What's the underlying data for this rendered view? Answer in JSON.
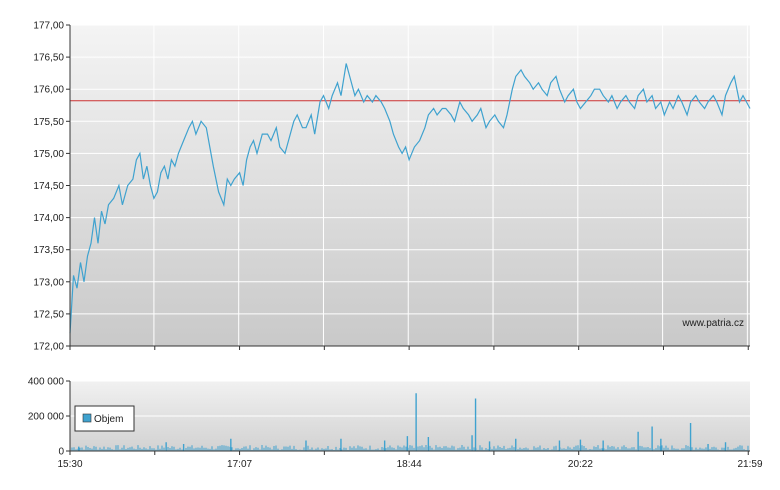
{
  "chart_data": [
    {
      "type": "line",
      "title": "",
      "xlabel": "",
      "ylabel": "",
      "ylim": [
        172.0,
        177.0
      ],
      "y_ticks": [
        "177,00",
        "176,50",
        "176,00",
        "175,50",
        "175,00",
        "174,50",
        "174,00",
        "173,50",
        "173,00",
        "172,50",
        "172,00"
      ],
      "x_ticks": [
        "15:30",
        "17:07",
        "18:44",
        "20:22",
        "21:59"
      ],
      "reference_line": 175.82,
      "watermark": "www.patria.cz",
      "grid": true,
      "series": [
        {
          "x": [
            "15:30",
            "15:32",
            "15:34",
            "15:36",
            "15:38",
            "15:40",
            "15:42",
            "15:44",
            "15:46",
            "15:48",
            "15:50",
            "15:52",
            "15:55",
            "15:58",
            "16:00",
            "16:03",
            "16:06",
            "16:08",
            "16:10",
            "16:12",
            "16:14",
            "16:16",
            "16:18",
            "16:20",
            "16:22",
            "16:24",
            "16:26",
            "16:28",
            "16:30",
            "16:32",
            "16:35",
            "16:38",
            "16:40",
            "16:42",
            "16:45",
            "16:48",
            "16:50",
            "16:52",
            "16:55",
            "16:58",
            "17:00",
            "17:02",
            "17:04",
            "17:07",
            "17:09",
            "17:11",
            "17:13",
            "17:15",
            "17:17",
            "17:20",
            "17:23",
            "17:25",
            "17:28",
            "17:30",
            "17:33",
            "17:35",
            "17:38",
            "17:40",
            "17:43",
            "17:45",
            "17:48",
            "17:50",
            "17:53",
            "17:55",
            "17:58",
            "18:00",
            "18:03",
            "18:05",
            "18:08",
            "18:10",
            "18:13",
            "18:15",
            "18:18",
            "18:20",
            "18:23",
            "18:25",
            "18:28",
            "18:30",
            "18:33",
            "18:35",
            "18:38",
            "18:40",
            "18:42",
            "18:44",
            "18:47",
            "18:50",
            "18:53",
            "18:55",
            "18:58",
            "19:00",
            "19:03",
            "19:05",
            "19:08",
            "19:10",
            "19:13",
            "19:15",
            "19:18",
            "19:20",
            "19:23",
            "19:25",
            "19:28",
            "19:30",
            "19:33",
            "19:35",
            "19:38",
            "19:40",
            "19:43",
            "19:45",
            "19:48",
            "19:50",
            "19:53",
            "19:55",
            "19:58",
            "20:00",
            "20:03",
            "20:05",
            "20:08",
            "20:10",
            "20:13",
            "20:15",
            "20:18",
            "20:20",
            "20:22",
            "20:25",
            "20:28",
            "20:30",
            "20:33",
            "20:35",
            "20:38",
            "20:40",
            "20:43",
            "20:45",
            "20:48",
            "20:50",
            "20:53",
            "20:55",
            "20:58",
            "21:00",
            "21:03",
            "21:05",
            "21:08",
            "21:10",
            "21:13",
            "21:15",
            "21:18",
            "21:20",
            "21:23",
            "21:25",
            "21:28",
            "21:30",
            "21:33",
            "21:35",
            "21:38",
            "21:40",
            "21:43",
            "21:45",
            "21:48",
            "21:50",
            "21:53",
            "21:55",
            "21:57",
            "21:59"
          ],
          "values": [
            172.2,
            173.1,
            172.9,
            173.3,
            173.0,
            173.4,
            173.6,
            174.0,
            173.6,
            174.1,
            173.9,
            174.2,
            174.3,
            174.5,
            174.2,
            174.5,
            174.6,
            174.9,
            175.0,
            174.6,
            174.8,
            174.5,
            174.3,
            174.4,
            174.7,
            174.8,
            174.6,
            174.9,
            174.8,
            175.0,
            175.2,
            175.4,
            175.5,
            175.3,
            175.5,
            175.4,
            175.1,
            174.8,
            174.4,
            174.2,
            174.6,
            174.5,
            174.6,
            174.7,
            174.5,
            174.9,
            175.1,
            175.2,
            175.0,
            175.3,
            175.3,
            175.2,
            175.4,
            175.1,
            175.0,
            175.2,
            175.5,
            175.6,
            175.4,
            175.4,
            175.6,
            175.3,
            175.8,
            175.9,
            175.7,
            175.9,
            176.1,
            175.9,
            176.4,
            176.2,
            175.9,
            176.0,
            175.8,
            175.9,
            175.8,
            175.9,
            175.8,
            175.7,
            175.5,
            175.3,
            175.1,
            175.0,
            175.1,
            174.9,
            175.1,
            175.2,
            175.4,
            175.6,
            175.7,
            175.6,
            175.7,
            175.7,
            175.6,
            175.5,
            175.8,
            175.7,
            175.6,
            175.5,
            175.6,
            175.7,
            175.4,
            175.5,
            175.6,
            175.5,
            175.4,
            175.6,
            176.0,
            176.2,
            176.3,
            176.2,
            176.1,
            176.0,
            176.1,
            176.0,
            175.9,
            176.1,
            176.2,
            176.0,
            175.8,
            175.9,
            176.0,
            175.8,
            175.7,
            175.8,
            175.9,
            176.0,
            176.0,
            175.9,
            175.8,
            175.9,
            175.7,
            175.8,
            175.9,
            175.8,
            175.7,
            175.9,
            176.0,
            175.8,
            175.9,
            175.7,
            175.8,
            175.6,
            175.8,
            175.7,
            175.9,
            175.8,
            175.6,
            175.8,
            175.9,
            175.8,
            175.7,
            175.8,
            175.9,
            175.8,
            175.6,
            175.9,
            176.1,
            176.2,
            175.8,
            175.9,
            175.8,
            175.7
          ]
        }
      ]
    },
    {
      "type": "bar",
      "title": "",
      "xlabel": "",
      "ylabel": "",
      "ylim": [
        0,
        400000
      ],
      "y_ticks": [
        "400 000",
        "200 000",
        "0"
      ],
      "x_ticks": [
        "15:30",
        "17:07",
        "18:44",
        "20:22",
        "21:59"
      ],
      "legend": "Objem",
      "grid": true,
      "series": [
        {
          "name": "Objem",
          "x": [
            "15:35",
            "16:25",
            "16:35",
            "17:02",
            "17:45",
            "18:05",
            "18:30",
            "18:43",
            "18:48",
            "18:55",
            "19:20",
            "19:22",
            "19:30",
            "19:45",
            "20:10",
            "20:22",
            "20:35",
            "20:55",
            "21:03",
            "21:08",
            "21:25",
            "21:35",
            "21:45"
          ],
          "values": [
            25000,
            50000,
            40000,
            70000,
            60000,
            70000,
            60000,
            85000,
            330000,
            80000,
            90000,
            300000,
            55000,
            70000,
            60000,
            65000,
            60000,
            110000,
            140000,
            70000,
            160000,
            40000,
            50000
          ]
        }
      ]
    }
  ],
  "colors": {
    "price_line": "#3fa2cf",
    "reference_line": "#cc3333",
    "volume_bar": "#3fa2cf",
    "plot_bg_top": "#f4f4f4",
    "plot_bg_bottom": "#c9c9c9",
    "grid": "#ffffff",
    "axis": "#333333"
  }
}
